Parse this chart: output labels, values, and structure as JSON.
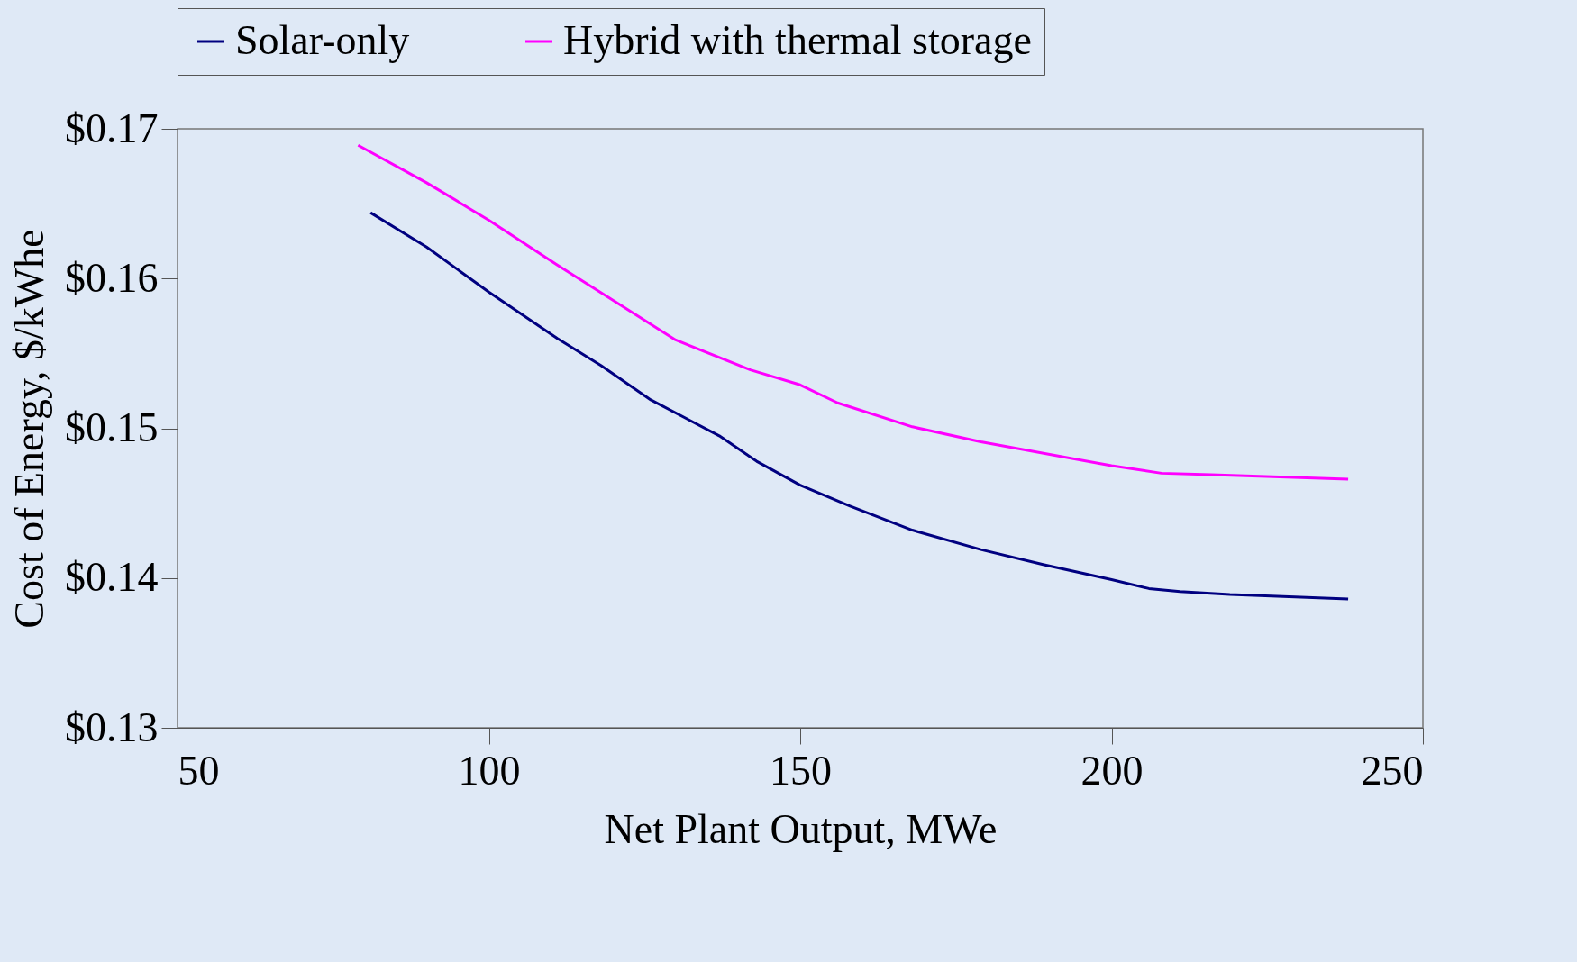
{
  "chart_data": {
    "type": "line",
    "xlabel": "Net Plant Output, MWe",
    "ylabel": "Cost of Energy, $/kWhe",
    "xlim": [
      50,
      250
    ],
    "xticks": [
      50,
      100,
      150,
      200,
      250
    ],
    "ylim": [
      0.13,
      0.17
    ],
    "yticks": [
      {
        "value": 0.13,
        "label": "$0.13"
      },
      {
        "value": 0.14,
        "label": "$0.14"
      },
      {
        "value": 0.15,
        "label": "$0.15"
      },
      {
        "value": 0.16,
        "label": "$0.16"
      },
      {
        "value": 0.17,
        "label": "$0.17"
      }
    ],
    "grid": false,
    "legend": "top",
    "marker": "none",
    "line_style": "solid",
    "series": [
      {
        "name": "Solar-only",
        "color": "#000080",
        "x": [
          81,
          90,
          100,
          111,
          118,
          126,
          137,
          143,
          150,
          158,
          168,
          179,
          189,
          200,
          206,
          211,
          219,
          238
        ],
        "values": [
          0.1644,
          0.1621,
          0.1591,
          0.156,
          0.1542,
          0.1519,
          0.1495,
          0.1478,
          0.1462,
          0.1448,
          0.1432,
          0.1419,
          0.1409,
          0.1399,
          0.1393,
          0.1391,
          0.1389,
          0.1386
        ]
      },
      {
        "name": "Hybrid with thermal storage",
        "color": "#ff00ff",
        "x": [
          79,
          90,
          100,
          111,
          119,
          130,
          142,
          150,
          156,
          168,
          179,
          200,
          208,
          216,
          238
        ],
        "values": [
          0.1689,
          0.1664,
          0.1639,
          0.1609,
          0.1588,
          0.1559,
          0.1539,
          0.1529,
          0.1517,
          0.1501,
          0.1491,
          0.1475,
          0.147,
          0.1469,
          0.1466
        ]
      }
    ]
  }
}
